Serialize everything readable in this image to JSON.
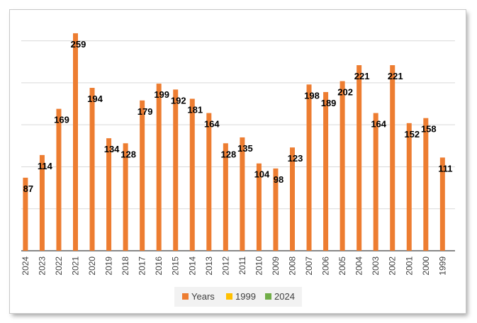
{
  "chart_data": {
    "type": "bar",
    "categories": [
      "2024",
      "2023",
      "2022",
      "2021",
      "2020",
      "2019",
      "2018",
      "2017",
      "2016",
      "2015",
      "2014",
      "2013",
      "2012",
      "2011",
      "2010",
      "2009",
      "2008",
      "2007",
      "2006",
      "2005",
      "2004",
      "2003",
      "2002",
      "2001",
      "2000",
      "1999"
    ],
    "series": [
      {
        "name": "Years",
        "color": "#ED7D31",
        "values": [
          87,
          114,
          169,
          259,
          194,
          134,
          128,
          179,
          199,
          192,
          181,
          164,
          128,
          135,
          104,
          98,
          123,
          198,
          189,
          202,
          221,
          164,
          221,
          152,
          158,
          111
        ]
      }
    ],
    "legend": {
      "placement": "bottom",
      "entries": [
        {
          "label": "Years",
          "color": "#ED7D31"
        },
        {
          "label": "1999",
          "color": "#FFC000"
        },
        {
          "label": "2024",
          "color": "#70AD47"
        }
      ]
    },
    "ylim": [
      0,
      275
    ],
    "gridlines": [
      50,
      100,
      150,
      200,
      250
    ],
    "grid": true,
    "title": "",
    "xlabel": "",
    "ylabel": ""
  }
}
